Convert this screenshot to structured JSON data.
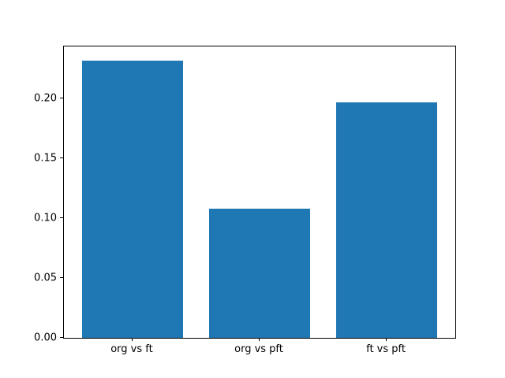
{
  "chart_data": {
    "type": "bar",
    "title": "",
    "xlabel": "",
    "ylabel": "",
    "categories": [
      "org vs ft",
      "org vs pft",
      "ft vs pft"
    ],
    "values": [
      0.232,
      0.108,
      0.197
    ],
    "bar_color": "#1f77b4",
    "bar_width": 0.8,
    "xlim": [
      -0.54,
      2.54
    ],
    "ylim": [
      0,
      0.2438
    ],
    "yticks": [
      {
        "value": 0.0,
        "label": "0.00"
      },
      {
        "value": 0.05,
        "label": "0.05"
      },
      {
        "value": 0.1,
        "label": "0.10"
      },
      {
        "value": 0.15,
        "label": "0.15"
      },
      {
        "value": 0.2,
        "label": "0.20"
      }
    ],
    "grid": false,
    "legend": false,
    "spine_color": "#000000",
    "background_color": "#ffffff"
  }
}
